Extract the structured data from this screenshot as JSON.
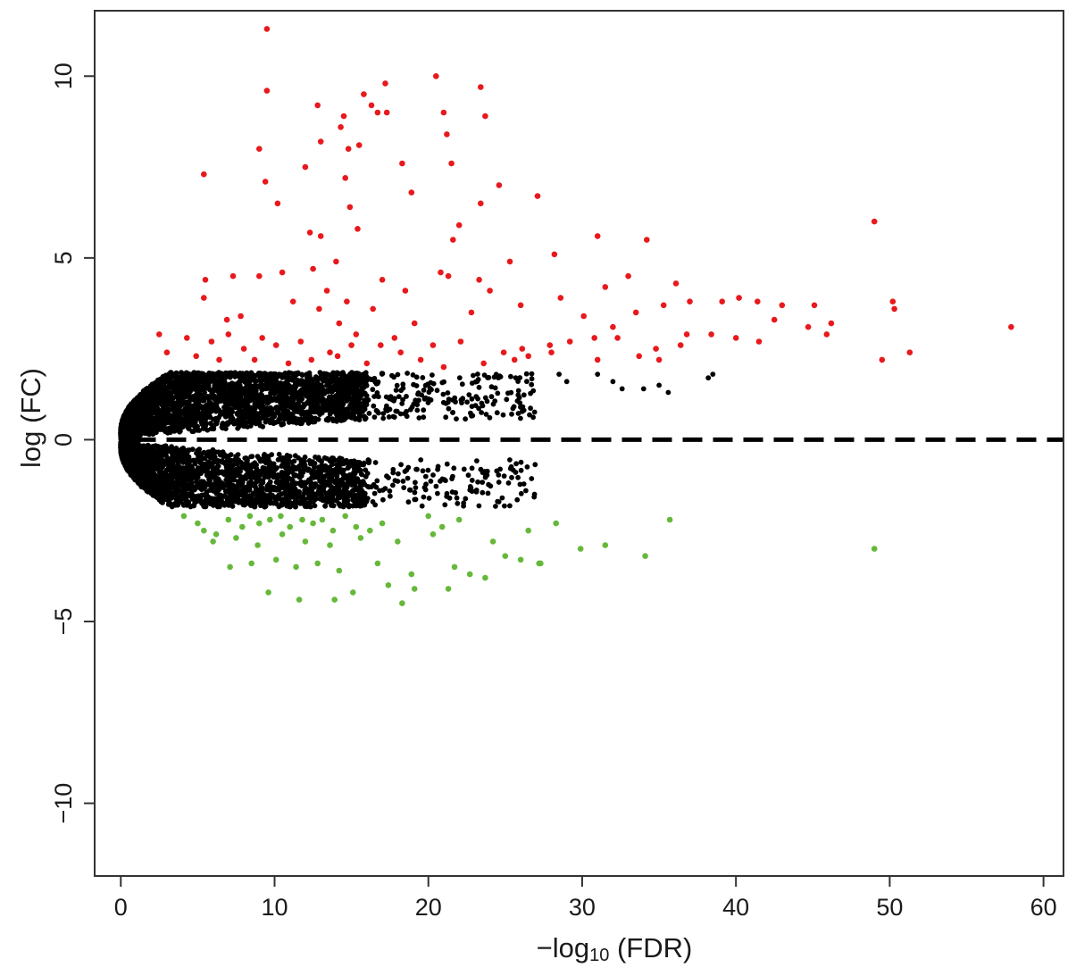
{
  "chart_data": {
    "type": "scatter",
    "title": "",
    "xlabel": "−log",
    "xlabel_sub": "10",
    "xlabel_suffix": " (FDR)",
    "ylabel": "log (FC)",
    "xlim": [
      -1.7,
      61.3
    ],
    "ylim": [
      -12,
      11.8
    ],
    "xticks": [
      0,
      10,
      20,
      30,
      40,
      50,
      60
    ],
    "xtick_labels": [
      "0",
      "10",
      "20",
      "30",
      "40",
      "50",
      "60"
    ],
    "yticks": [
      -10,
      -5,
      0,
      5,
      10
    ],
    "ytick_labels": [
      "−10",
      "−5",
      "0",
      "5",
      "10"
    ],
    "grid": false,
    "legend": "none",
    "reference_line": {
      "y": 0,
      "style": "dashed",
      "color": "#000000"
    },
    "colors": {
      "up": "#e8191c",
      "down": "#66b83a",
      "ns": "#000000"
    },
    "series": [
      {
        "color_key": "up",
        "points": [
          [
            9.5,
            11.3
          ],
          [
            9.5,
            9.6
          ],
          [
            20.5,
            10.0
          ],
          [
            17.2,
            9.8
          ],
          [
            23.4,
            9.7
          ],
          [
            15.8,
            9.5
          ],
          [
            16.3,
            9.2
          ],
          [
            12.8,
            9.2
          ],
          [
            16.7,
            9.0
          ],
          [
            17.3,
            9.0
          ],
          [
            21.0,
            9.0
          ],
          [
            23.7,
            8.9
          ],
          [
            14.5,
            8.9
          ],
          [
            14.3,
            8.6
          ],
          [
            21.2,
            8.4
          ],
          [
            13.0,
            8.2
          ],
          [
            15.5,
            8.1
          ],
          [
            9.0,
            8.0
          ],
          [
            14.8,
            8.0
          ],
          [
            21.5,
            7.6
          ],
          [
            18.3,
            7.6
          ],
          [
            5.4,
            7.3
          ],
          [
            14.6,
            7.2
          ],
          [
            9.4,
            7.1
          ],
          [
            12.0,
            7.5
          ],
          [
            23.4,
            6.5
          ],
          [
            10.2,
            6.5
          ],
          [
            14.9,
            6.4
          ],
          [
            18.9,
            6.8
          ],
          [
            24.6,
            7.0
          ],
          [
            27.1,
            6.7
          ],
          [
            12.3,
            5.7
          ],
          [
            13.0,
            5.6
          ],
          [
            15.4,
            5.8
          ],
          [
            22.0,
            5.9
          ],
          [
            21.6,
            5.5
          ],
          [
            31.0,
            5.6
          ],
          [
            34.2,
            5.5
          ],
          [
            49.0,
            6.0
          ],
          [
            9.0,
            4.5
          ],
          [
            10.5,
            4.6
          ],
          [
            12.5,
            4.7
          ],
          [
            14.0,
            4.9
          ],
          [
            17.0,
            4.4
          ],
          [
            21.3,
            4.5
          ],
          [
            23.3,
            4.4
          ],
          [
            25.3,
            4.9
          ],
          [
            28.2,
            5.1
          ],
          [
            33.0,
            4.5
          ],
          [
            5.5,
            4.4
          ],
          [
            5.4,
            3.9
          ],
          [
            7.3,
            4.5
          ],
          [
            11.2,
            3.8
          ],
          [
            13.4,
            4.1
          ],
          [
            14.7,
            3.8
          ],
          [
            18.5,
            4.1
          ],
          [
            20.8,
            4.6
          ],
          [
            24.0,
            4.1
          ],
          [
            31.5,
            4.2
          ],
          [
            36.1,
            4.3
          ],
          [
            6.9,
            3.3
          ],
          [
            7.8,
            3.4
          ],
          [
            12.9,
            3.6
          ],
          [
            14.2,
            3.2
          ],
          [
            16.4,
            3.6
          ],
          [
            19.1,
            3.2
          ],
          [
            22.8,
            3.5
          ],
          [
            26.0,
            3.7
          ],
          [
            28.6,
            3.9
          ],
          [
            30.1,
            3.4
          ],
          [
            32.0,
            3.1
          ],
          [
            33.5,
            3.5
          ],
          [
            35.3,
            3.7
          ],
          [
            37.0,
            3.8
          ],
          [
            39.1,
            3.8
          ],
          [
            40.2,
            3.9
          ],
          [
            41.4,
            3.8
          ],
          [
            43.0,
            3.7
          ],
          [
            45.1,
            3.7
          ],
          [
            46.2,
            3.2
          ],
          [
            50.2,
            3.8
          ],
          [
            50.3,
            3.6
          ],
          [
            57.9,
            3.1
          ],
          [
            4.3,
            2.8
          ],
          [
            5.9,
            2.7
          ],
          [
            8.0,
            2.5
          ],
          [
            10.1,
            2.6
          ],
          [
            11.7,
            2.7
          ],
          [
            13.6,
            2.4
          ],
          [
            15.0,
            2.6
          ],
          [
            16.9,
            2.6
          ],
          [
            18.2,
            2.4
          ],
          [
            20.3,
            2.6
          ],
          [
            22.1,
            2.7
          ],
          [
            24.9,
            2.4
          ],
          [
            26.5,
            2.3
          ],
          [
            27.9,
            2.6
          ],
          [
            29.2,
            2.7
          ],
          [
            30.8,
            2.8
          ],
          [
            32.3,
            2.8
          ],
          [
            34.8,
            2.5
          ],
          [
            36.4,
            2.6
          ],
          [
            38.4,
            2.9
          ],
          [
            40.0,
            2.8
          ],
          [
            41.5,
            2.7
          ],
          [
            44.7,
            3.1
          ],
          [
            45.9,
            2.9
          ],
          [
            3.0,
            2.4
          ],
          [
            4.9,
            2.3
          ],
          [
            6.4,
            2.2
          ],
          [
            8.7,
            2.2
          ],
          [
            10.9,
            2.1
          ],
          [
            12.4,
            2.2
          ],
          [
            14.1,
            2.3
          ],
          [
            16.0,
            2.1
          ],
          [
            19.5,
            2.2
          ],
          [
            21.0,
            2.0
          ],
          [
            23.6,
            2.1
          ],
          [
            25.6,
            2.2
          ],
          [
            28.0,
            2.4
          ],
          [
            31.0,
            2.2
          ],
          [
            33.7,
            2.3
          ],
          [
            35.0,
            2.2
          ],
          [
            49.5,
            2.2
          ],
          [
            51.3,
            2.4
          ],
          [
            2.5,
            2.9
          ],
          [
            7.0,
            2.9
          ],
          [
            9.2,
            2.8
          ],
          [
            15.3,
            2.9
          ],
          [
            17.8,
            2.8
          ],
          [
            26.1,
            2.5
          ],
          [
            36.8,
            2.9
          ],
          [
            42.5,
            3.3
          ]
        ]
      },
      {
        "color_key": "down",
        "points": [
          [
            4.1,
            -2.1
          ],
          [
            5.0,
            -2.3
          ],
          [
            5.4,
            -2.5
          ],
          [
            6.2,
            -2.6
          ],
          [
            7.0,
            -2.2
          ],
          [
            7.9,
            -2.4
          ],
          [
            8.4,
            -2.1
          ],
          [
            9.0,
            -2.3
          ],
          [
            9.7,
            -2.2
          ],
          [
            10.4,
            -2.1
          ],
          [
            11.0,
            -2.4
          ],
          [
            11.8,
            -2.2
          ],
          [
            12.5,
            -2.3
          ],
          [
            13.1,
            -2.2
          ],
          [
            13.8,
            -2.5
          ],
          [
            14.6,
            -2.1
          ],
          [
            15.3,
            -2.4
          ],
          [
            16.2,
            -2.5
          ],
          [
            17.0,
            -2.3
          ],
          [
            20.0,
            -2.1
          ],
          [
            20.9,
            -2.4
          ],
          [
            22.0,
            -2.2
          ],
          [
            6.0,
            -2.8
          ],
          [
            7.5,
            -2.7
          ],
          [
            8.9,
            -2.9
          ],
          [
            10.5,
            -2.6
          ],
          [
            12.0,
            -2.8
          ],
          [
            13.6,
            -2.9
          ],
          [
            15.6,
            -2.7
          ],
          [
            18.0,
            -2.8
          ],
          [
            20.3,
            -2.6
          ],
          [
            24.2,
            -2.8
          ],
          [
            26.5,
            -2.5
          ],
          [
            28.3,
            -2.3
          ],
          [
            35.7,
            -2.2
          ],
          [
            7.1,
            -3.5
          ],
          [
            8.5,
            -3.4
          ],
          [
            10.1,
            -3.3
          ],
          [
            11.4,
            -3.5
          ],
          [
            12.8,
            -3.4
          ],
          [
            14.2,
            -3.6
          ],
          [
            16.7,
            -3.4
          ],
          [
            18.9,
            -3.7
          ],
          [
            21.7,
            -3.5
          ],
          [
            22.7,
            -3.7
          ],
          [
            25.0,
            -3.2
          ],
          [
            26.0,
            -3.3
          ],
          [
            27.3,
            -3.4
          ],
          [
            29.9,
            -3.0
          ],
          [
            31.5,
            -2.9
          ],
          [
            34.1,
            -3.2
          ],
          [
            49.0,
            -3.0
          ],
          [
            9.6,
            -4.2
          ],
          [
            11.6,
            -4.4
          ],
          [
            13.9,
            -4.4
          ],
          [
            15.1,
            -4.2
          ],
          [
            17.4,
            -4.0
          ],
          [
            18.3,
            -4.5
          ],
          [
            19.1,
            -4.1
          ],
          [
            21.3,
            -4.1
          ],
          [
            23.7,
            -3.8
          ],
          [
            27.2,
            -3.4
          ]
        ]
      }
    ]
  }
}
